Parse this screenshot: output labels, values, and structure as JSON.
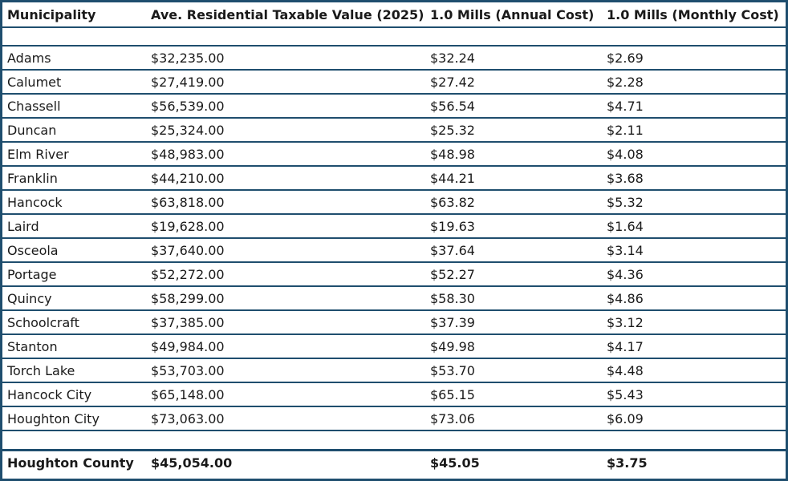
{
  "colors": {
    "border": "#1f4e6e",
    "background": "#ffffff",
    "text": "#1a1a1a"
  },
  "table": {
    "headers": [
      "Municipality",
      "Ave. Residential Taxable Value (2025)",
      "1.0 Mills (Annual Cost)",
      "1.0 Mills (Monthly Cost)"
    ],
    "rows": [
      [
        "Adams",
        "$32,235.00",
        "$32.24",
        "$2.69"
      ],
      [
        "Calumet",
        "$27,419.00",
        "$27.42",
        "$2.28"
      ],
      [
        "Chassell",
        "$56,539.00",
        "$56.54",
        "$4.71"
      ],
      [
        "Duncan",
        "$25,324.00",
        "$25.32",
        "$2.11"
      ],
      [
        "Elm River",
        "$48,983.00",
        "$48.98",
        "$4.08"
      ],
      [
        "Franklin",
        "$44,210.00",
        "$44.21",
        "$3.68"
      ],
      [
        "Hancock",
        "$63,818.00",
        "$63.82",
        "$5.32"
      ],
      [
        "Laird",
        "$19,628.00",
        "$19.63",
        "$1.64"
      ],
      [
        "Osceola",
        "$37,640.00",
        "$37.64",
        "$3.14"
      ],
      [
        "Portage",
        "$52,272.00",
        "$52.27",
        "$4.36"
      ],
      [
        "Quincy",
        "$58,299.00",
        "$58.30",
        "$4.86"
      ],
      [
        "Schoolcraft",
        "$37,385.00",
        "$37.39",
        "$3.12"
      ],
      [
        "Stanton",
        "$49,984.00",
        "$49.98",
        "$4.17"
      ],
      [
        "Torch Lake",
        "$53,703.00",
        "$53.70",
        "$4.48"
      ],
      [
        "Hancock City",
        "$65,148.00",
        "$65.15",
        "$5.43"
      ],
      [
        "Houghton City",
        "$73,063.00",
        "$73.06",
        "$6.09"
      ]
    ],
    "total": [
      "Houghton County",
      "$45,054.00",
      "$45.05",
      "$3.75"
    ]
  }
}
